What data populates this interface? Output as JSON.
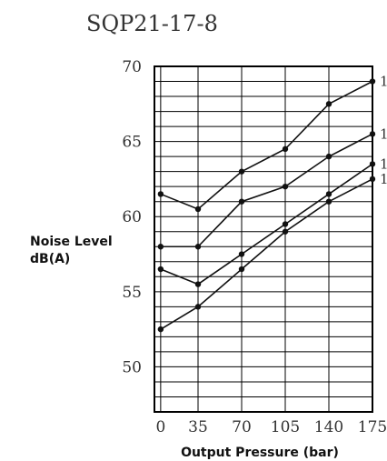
{
  "chart_data": {
    "type": "line",
    "title": "SQP21-17-8",
    "xlabel": "Output Pressure (bar)",
    "ylabel_line1": "Noise Level",
    "ylabel_line2": "dB(A)",
    "x": [
      5,
      35,
      70,
      105,
      140,
      175
    ],
    "x_tick_labels": [
      "0",
      "35",
      "70",
      "105",
      "140",
      "175"
    ],
    "xlim": [
      0,
      175
    ],
    "ylim": [
      47,
      70
    ],
    "y_ticks": [
      50,
      55,
      60,
      65,
      70
    ],
    "y_tick_labels": [
      "50",
      "55",
      "60",
      "65",
      "70"
    ],
    "grid": true,
    "series": [
      {
        "values": [
          61.5,
          60.5,
          63.0,
          64.5,
          67.5,
          69.0
        ],
        "end_label": "1"
      },
      {
        "values": [
          58.0,
          58.0,
          61.0,
          62.0,
          64.0,
          65.5
        ],
        "end_label": "1"
      },
      {
        "values": [
          56.5,
          55.5,
          57.5,
          59.5,
          61.5,
          63.5
        ],
        "end_label": "1"
      },
      {
        "values": [
          52.5,
          54.0,
          56.5,
          59.0,
          61.0,
          62.5
        ],
        "end_label": "1"
      }
    ]
  }
}
